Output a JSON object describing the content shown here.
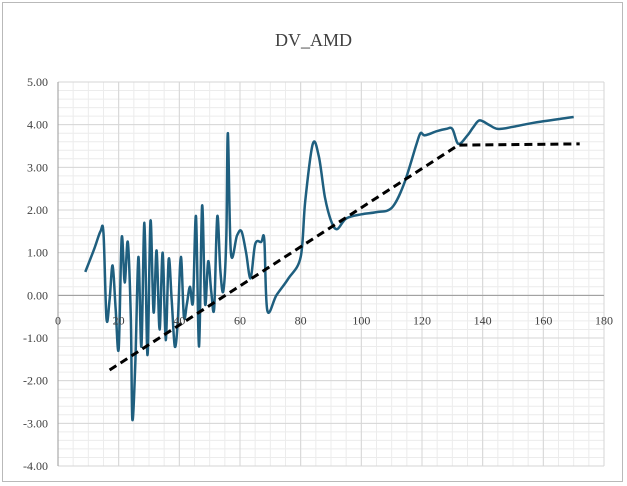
{
  "chart_data": {
    "type": "line",
    "title": "DV_AMD",
    "xlabel": "",
    "ylabel": "",
    "xlim": [
      0,
      180
    ],
    "ylim": [
      -4,
      5
    ],
    "x_ticks": [
      "0",
      "20",
      "40",
      "60",
      "80",
      "100",
      "120",
      "140",
      "160",
      "180"
    ],
    "y_ticks": [
      "5.00",
      "4.00",
      "3.00",
      "2.00",
      "1.00",
      "0.00",
      "-1.00",
      "-2.00",
      "-3.00",
      "-4.00"
    ],
    "grid": true,
    "legend": "none",
    "series": [
      {
        "style": "solid",
        "color": "#1f5f7f",
        "points": [
          [
            9,
            0.55
          ],
          [
            12,
            1.1
          ],
          [
            14,
            1.5
          ],
          [
            15,
            1.45
          ],
          [
            16,
            -0.55
          ],
          [
            17,
            -0.1
          ],
          [
            18,
            0.7
          ],
          [
            19,
            -0.3
          ],
          [
            20,
            -1.25
          ],
          [
            21,
            1.35
          ],
          [
            22,
            0.3
          ],
          [
            23,
            1.25
          ],
          [
            24,
            -0.5
          ],
          [
            24.5,
            -2.9
          ],
          [
            25.5,
            -1.6
          ],
          [
            26.5,
            0.9
          ],
          [
            27.5,
            -1.2
          ],
          [
            28.5,
            1.7
          ],
          [
            29.5,
            -1.4
          ],
          [
            30.5,
            1.75
          ],
          [
            31.5,
            -0.4
          ],
          [
            32.5,
            1.05
          ],
          [
            33.5,
            -0.8
          ],
          [
            34.5,
            1.0
          ],
          [
            35.5,
            -1.05
          ],
          [
            36.5,
            0.85
          ],
          [
            37.5,
            -0.15
          ],
          [
            38.5,
            -1.2
          ],
          [
            39.5,
            -0.6
          ],
          [
            40.5,
            0.9
          ],
          [
            41.5,
            -0.5
          ],
          [
            42.5,
            -0.2
          ],
          [
            43.5,
            0.2
          ],
          [
            44.5,
            -0.15
          ],
          [
            45.5,
            1.85
          ],
          [
            46.5,
            -1.2
          ],
          [
            47.5,
            2.1
          ],
          [
            48.5,
            -0.2
          ],
          [
            49.5,
            0.8
          ],
          [
            50.5,
            0.1
          ],
          [
            51.5,
            -0.3
          ],
          [
            52.5,
            1.85
          ],
          [
            53.5,
            0.6
          ],
          [
            54.5,
            0.1
          ],
          [
            55.5,
            1.35
          ],
          [
            56,
            3.8
          ],
          [
            57,
            1.0
          ],
          [
            59,
            1.4
          ],
          [
            60.5,
            1.5
          ],
          [
            62,
            1.0
          ],
          [
            63.5,
            0.4
          ],
          [
            65,
            1.2
          ],
          [
            67,
            1.25
          ],
          [
            68,
            1.3
          ],
          [
            69,
            -0.35
          ],
          [
            72,
            0.0
          ],
          [
            76,
            0.4
          ],
          [
            80,
            0.9
          ],
          [
            81.5,
            2.2
          ],
          [
            84,
            3.55
          ],
          [
            86,
            3.25
          ],
          [
            88,
            2.3
          ],
          [
            90,
            1.75
          ],
          [
            92,
            1.55
          ],
          [
            95,
            1.8
          ],
          [
            100,
            1.9
          ],
          [
            105,
            1.95
          ],
          [
            110,
            2.05
          ],
          [
            114,
            2.6
          ],
          [
            118,
            3.5
          ],
          [
            119.5,
            3.8
          ],
          [
            121,
            3.75
          ],
          [
            125,
            3.85
          ],
          [
            128,
            3.9
          ],
          [
            130,
            3.9
          ],
          [
            132,
            3.55
          ],
          [
            135,
            3.75
          ],
          [
            137,
            3.95
          ],
          [
            139,
            4.1
          ],
          [
            142,
            4.0
          ],
          [
            145,
            3.9
          ],
          [
            150,
            3.95
          ],
          [
            155,
            4.02
          ],
          [
            160,
            4.08
          ],
          [
            165,
            4.13
          ],
          [
            170,
            4.18
          ]
        ]
      },
      {
        "style": "dashed",
        "color": "#000000",
        "points": [
          [
            17,
            -1.75
          ],
          [
            132,
            3.52
          ],
          [
            172,
            3.55
          ]
        ]
      }
    ]
  }
}
